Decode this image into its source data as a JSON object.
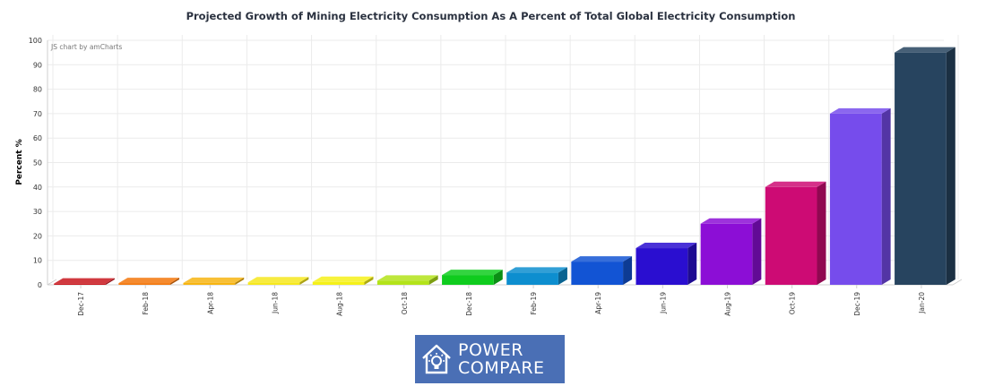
{
  "chart_data": {
    "type": "bar",
    "title": "Projected Growth of Mining Electricity Consumption As A Percent of Total Global Electricity Consumption",
    "ylabel": "Percent %",
    "xlabel": "",
    "ylim": [
      0,
      100
    ],
    "yticks": [
      0,
      10,
      20,
      30,
      40,
      50,
      60,
      70,
      80,
      90,
      100
    ],
    "categories": [
      "Dec-17",
      "Feb-18",
      "Apr-18",
      "Jun-18",
      "Aug-18",
      "Oct-18",
      "Dec-18",
      "Feb-19",
      "Apr-19",
      "Jun-19",
      "Aug-19",
      "Oct-19",
      "Dec-19",
      "Jan-20"
    ],
    "values": [
      0.5,
      0.7,
      0.8,
      1,
      1.2,
      1.7,
      4,
      5,
      9.5,
      15,
      25,
      40,
      70,
      95
    ],
    "colors": [
      "#c8161d",
      "#f3760b",
      "#f7b512",
      "#f6e81e",
      "#f5f119",
      "#b3e31a",
      "#0fcc1e",
      "#0d8ecf",
      "#1254d4",
      "#2a0ed0",
      "#8c0ed6",
      "#cd0b74",
      "#764cec",
      "#27445f"
    ],
    "grid": true,
    "credit": "JS chart by amCharts"
  },
  "logo": {
    "line1": "POWER",
    "line2": "COMPARE",
    "bg_color": "#4a6fb5"
  }
}
